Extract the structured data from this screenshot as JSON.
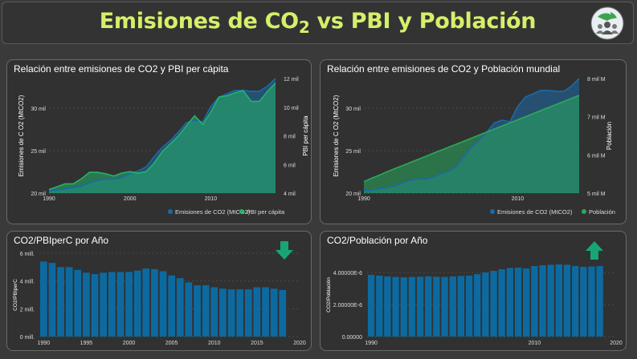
{
  "header": {
    "title_pre": "Emisiones de CO",
    "title_sub": "2",
    "title_post": " vs PBI y Población",
    "logo_icon": "globe-people-icon"
  },
  "panels": {
    "p1_title": "Relación entre emisiones de CO2 y PBI per cápita",
    "p2_title": "Relación entre emisiones de CO2 y Población mundial",
    "p3_title": "CO2/PBIperC por Año",
    "p4_title": "CO2/Población por Año",
    "p3_arrow": "arrow-down-icon",
    "p4_arrow": "arrow-up-icon"
  },
  "colors": {
    "emisiones": "#1b6aa8",
    "pbi": "#25b36a",
    "poblacion": "#2aaa5c",
    "bars": "#0d6aa0",
    "title": "#d4f06a",
    "arrow": "#17a673"
  },
  "chart_data": [
    {
      "type": "area",
      "title": "Relación entre emisiones de CO2 y PBI per cápita",
      "ylabel": "Emisiones de C O2 (MtCO2)",
      "y2label": "PBI per cápita",
      "yticks": [
        "20 mil",
        "25 mil",
        "30 mil"
      ],
      "y2ticks": [
        "4 mil",
        "6 mil",
        "8 mil",
        "10 mil",
        "12 mil"
      ],
      "xticks": [
        "1990",
        "2000",
        "2010"
      ],
      "ylim": [
        20000,
        33500
      ],
      "y2lim": [
        4000,
        12000
      ],
      "x": [
        1990,
        1991,
        1992,
        1993,
        1994,
        1995,
        1996,
        1997,
        1998,
        1999,
        2000,
        2001,
        2002,
        2003,
        2004,
        2005,
        2006,
        2007,
        2008,
        2009,
        2010,
        2011,
        2012,
        2013,
        2014,
        2015,
        2016,
        2017,
        2018
      ],
      "series": [
        {
          "name": "Emisiones de CO2 (MtCO2)",
          "axis": "left",
          "values": [
            20300,
            20350,
            20500,
            20650,
            20800,
            21200,
            21500,
            21650,
            21650,
            21850,
            22300,
            22600,
            23100,
            24300,
            25400,
            26200,
            27200,
            28300,
            28600,
            28400,
            30200,
            31300,
            31700,
            32100,
            32100,
            32000,
            32000,
            32600,
            33500
          ]
        },
        {
          "name": "PBI per cápita",
          "axis": "right",
          "values": [
            4250,
            4450,
            4650,
            4650,
            5000,
            5450,
            5450,
            5350,
            5200,
            5400,
            5500,
            5400,
            5500,
            6100,
            6900,
            7450,
            8000,
            8700,
            9400,
            8800,
            9650,
            10700,
            10800,
            11000,
            11150,
            10400,
            10400,
            11100,
            11700
          ]
        }
      ],
      "legend": "bottom-right"
    },
    {
      "type": "area",
      "title": "Relación entre emisiones de CO2 y Población mundial",
      "ylabel": "Emisiones de C O2 (MtCO2)",
      "y2label": "Población",
      "yticks": [
        "20 mil",
        "25 mil",
        "30 mil"
      ],
      "y2ticks": [
        "5 mil M",
        "6 mil M",
        "7 mil M",
        "8 mil M"
      ],
      "xticks": [
        "1990",
        "2010"
      ],
      "ylim": [
        20000,
        33500
      ],
      "y2lim": [
        5000,
        8000
      ],
      "x": [
        1990,
        1991,
        1992,
        1993,
        1994,
        1995,
        1996,
        1997,
        1998,
        1999,
        2000,
        2001,
        2002,
        2003,
        2004,
        2005,
        2006,
        2007,
        2008,
        2009,
        2010,
        2011,
        2012,
        2013,
        2014,
        2015,
        2016,
        2017,
        2018
      ],
      "series": [
        {
          "name": "Emisiones de CO2 (MtCO2)",
          "axis": "left",
          "values": [
            20300,
            20350,
            20500,
            20650,
            20800,
            21200,
            21500,
            21650,
            21650,
            21850,
            22300,
            22600,
            23100,
            24300,
            25400,
            26200,
            27200,
            28300,
            28600,
            28400,
            30200,
            31300,
            31700,
            32100,
            32100,
            32000,
            32000,
            32600,
            33500
          ]
        },
        {
          "name": "Población",
          "axis": "right",
          "values": [
            5300,
            5390,
            5470,
            5560,
            5640,
            5720,
            5800,
            5880,
            5960,
            6040,
            6120,
            6200,
            6280,
            6360,
            6440,
            6520,
            6600,
            6680,
            6760,
            6840,
            6920,
            7000,
            7080,
            7160,
            7240,
            7320,
            7400,
            7480,
            7560
          ]
        }
      ],
      "legend": "bottom-right"
    },
    {
      "type": "bar",
      "title": "CO2/PBIperC por Año",
      "ylabel": "CO2/PBIperC",
      "yticks": [
        "0 mill.",
        "2 mill.",
        "4 mill.",
        "6 mill."
      ],
      "ylim": [
        0,
        6
      ],
      "xticks": [
        "1990",
        "1995",
        "2000",
        "2005",
        "2010",
        "2015",
        "2020"
      ],
      "xlim": [
        1989.5,
        2020
      ],
      "x": [
        1990,
        1991,
        1992,
        1993,
        1994,
        1995,
        1996,
        1997,
        1998,
        1999,
        2000,
        2001,
        2002,
        2003,
        2004,
        2005,
        2006,
        2007,
        2008,
        2009,
        2010,
        2011,
        2012,
        2013,
        2014,
        2015,
        2016,
        2017,
        2018
      ],
      "values": [
        5.4,
        5.3,
        5.0,
        5.0,
        4.8,
        4.6,
        4.5,
        4.6,
        4.65,
        4.65,
        4.65,
        4.75,
        4.9,
        4.85,
        4.7,
        4.4,
        4.2,
        3.9,
        3.7,
        3.7,
        3.55,
        3.45,
        3.4,
        3.4,
        3.4,
        3.55,
        3.55,
        3.45,
        3.35
      ]
    },
    {
      "type": "bar",
      "title": "CO2/Población por Año",
      "ylabel": "CO2/Población",
      "yticks": [
        "0.00000",
        "2.00000E-6",
        "4.00000E-6"
      ],
      "ylim": [
        0,
        5.2e-06
      ],
      "xticks": [
        "1990",
        "2010",
        "2020"
      ],
      "xlim": [
        1989.5,
        2020
      ],
      "x": [
        1990,
        1991,
        1992,
        1993,
        1994,
        1995,
        1996,
        1997,
        1998,
        1999,
        2000,
        2001,
        2002,
        2003,
        2004,
        2005,
        2006,
        2007,
        2008,
        2009,
        2010,
        2011,
        2012,
        2013,
        2014,
        2015,
        2016,
        2017,
        2018
      ],
      "values": [
        3.85e-06,
        3.8e-06,
        3.75e-06,
        3.72e-06,
        3.7e-06,
        3.72e-06,
        3.74e-06,
        3.76e-06,
        3.73e-06,
        3.72e-06,
        3.75e-06,
        3.78e-06,
        3.8e-06,
        3.89e-06,
        4e-06,
        4.1e-06,
        4.2e-06,
        4.28e-06,
        4.3e-06,
        4.25e-06,
        4.4e-06,
        4.45e-06,
        4.48e-06,
        4.5e-06,
        4.48e-06,
        4.4e-06,
        4.35e-06,
        4.37e-06,
        4.4e-06
      ]
    }
  ]
}
